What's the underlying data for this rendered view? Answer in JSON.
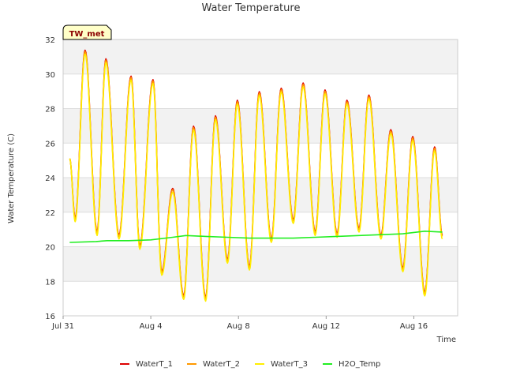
{
  "chart_data": {
    "type": "line",
    "title": "Water Temperature",
    "xlabel": "Time",
    "ylabel": "Water Temperature (C)",
    "badge": "TW_met",
    "xlim": [
      0,
      18
    ],
    "ylim": [
      16,
      32
    ],
    "x_unit": "days since Jul 31",
    "x_ticks": [
      {
        "value": 0,
        "label": "Jul 31"
      },
      {
        "value": 4,
        "label": "Aug 4"
      },
      {
        "value": 8,
        "label": "Aug 8"
      },
      {
        "value": 12,
        "label": "Aug 12"
      },
      {
        "value": 16,
        "label": "Aug 16"
      }
    ],
    "y_ticks": [
      16,
      18,
      20,
      22,
      24,
      26,
      28,
      30,
      32
    ],
    "grid": "horizontal bands",
    "legend_position": "bottom",
    "daily_extremes_WaterT": {
      "x": [
        0.3,
        0.55,
        1.0,
        1.55,
        1.95,
        2.55,
        3.1,
        3.5,
        4.1,
        4.5,
        5.0,
        5.5,
        5.95,
        6.5,
        6.95,
        7.5,
        7.95,
        8.5,
        8.95,
        9.5,
        9.95,
        10.5,
        10.95,
        11.5,
        11.95,
        12.5,
        12.95,
        13.5,
        13.95,
        14.5,
        14.95,
        15.5,
        15.95,
        16.5,
        16.95,
        17.3
      ],
      "y": [
        25.1,
        21.6,
        31.3,
        20.8,
        30.8,
        20.6,
        29.8,
        20.0,
        29.6,
        18.5,
        23.3,
        17.1,
        26.9,
        17.0,
        27.5,
        19.2,
        28.4,
        18.8,
        28.9,
        20.4,
        29.1,
        21.5,
        29.4,
        20.8,
        29.0,
        20.7,
        28.4,
        21.0,
        28.7,
        20.6,
        26.7,
        18.7,
        26.3,
        17.3,
        25.7,
        20.6
      ]
    },
    "series": [
      {
        "name": "WaterT_1",
        "color": "#dd0000",
        "offset": 0.08
      },
      {
        "name": "WaterT_2",
        "color": "#ff9900",
        "offset": 0.0
      },
      {
        "name": "WaterT_3",
        "color": "#ffee00",
        "offset": -0.15
      },
      {
        "name": "H2O_Temp",
        "color": "#22ee22",
        "x": [
          0.3,
          1.5,
          2.0,
          3.0,
          4.0,
          5.0,
          5.6,
          6.5,
          7.5,
          8.5,
          9.5,
          10.5,
          11.5,
          12.5,
          13.5,
          14.5,
          15.5,
          16.5,
          17.3
        ],
        "y": [
          20.25,
          20.3,
          20.35,
          20.35,
          20.4,
          20.55,
          20.65,
          20.6,
          20.55,
          20.5,
          20.5,
          20.5,
          20.55,
          20.6,
          20.65,
          20.7,
          20.75,
          20.9,
          20.85
        ]
      }
    ]
  }
}
